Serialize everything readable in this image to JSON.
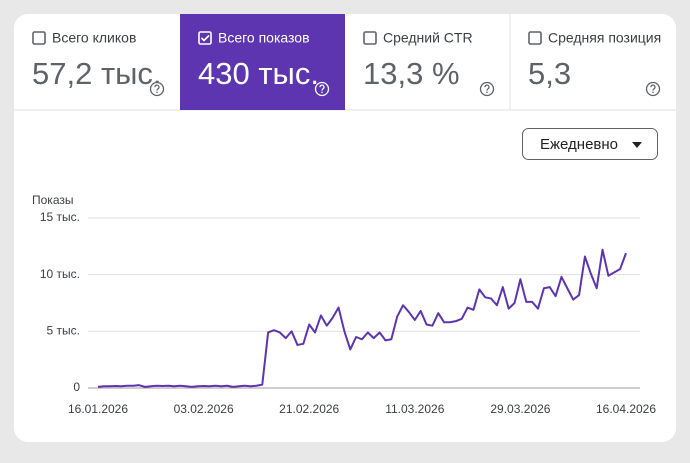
{
  "metrics": [
    {
      "label": "Всего кликов",
      "value": "57,2 тыс.",
      "checked": false
    },
    {
      "label": "Всего показов",
      "value": "430 тыс.",
      "checked": true
    },
    {
      "label": "Средний CTR",
      "value": "13,3 %",
      "checked": false
    },
    {
      "label": "Средняя позиция",
      "value": "5,3",
      "checked": false
    }
  ],
  "active_color": "#5e35b1",
  "dropdown": "Ежедневно",
  "chart_data": {
    "type": "line",
    "y_label": "Показы",
    "x": [
      "16.01.2026",
      "17.01.2026",
      "18.01.2026",
      "19.01.2026",
      "20.01.2026",
      "21.01.2026",
      "22.01.2026",
      "23.01.2026",
      "24.01.2026",
      "25.01.2026",
      "26.01.2026",
      "27.01.2026",
      "28.01.2026",
      "29.01.2026",
      "30.01.2026",
      "31.01.2026",
      "01.02.2026",
      "02.02.2026",
      "03.02.2026",
      "04.02.2026",
      "05.02.2026",
      "06.02.2026",
      "07.02.2026",
      "08.02.2026",
      "09.02.2026",
      "10.02.2026",
      "11.02.2026",
      "12.02.2026",
      "13.02.2026",
      "14.02.2026",
      "15.02.2026",
      "16.02.2026",
      "17.02.2026",
      "18.02.2026",
      "19.02.2026",
      "20.02.2026",
      "21.02.2026",
      "22.02.2026",
      "23.02.2026",
      "24.02.2026",
      "25.02.2026",
      "26.02.2026",
      "27.02.2026",
      "28.02.2026",
      "01.03.2026",
      "02.03.2026",
      "03.03.2026",
      "04.03.2026",
      "05.03.2026",
      "06.03.2026",
      "07.03.2026",
      "08.03.2026",
      "09.03.2026",
      "10.03.2026",
      "11.03.2026",
      "12.03.2026",
      "13.03.2026",
      "14.03.2026",
      "15.03.2026",
      "16.03.2026",
      "17.03.2026",
      "18.03.2026",
      "19.03.2026",
      "20.03.2026",
      "21.03.2026",
      "22.03.2026",
      "23.03.2026",
      "24.03.2026",
      "25.03.2026",
      "26.03.2026",
      "27.03.2026",
      "28.03.2026",
      "29.03.2026",
      "30.03.2026",
      "31.03.2026",
      "01.04.2026",
      "02.04.2026",
      "03.04.2026",
      "04.04.2026",
      "05.04.2026",
      "06.04.2026",
      "07.04.2026",
      "08.04.2026",
      "09.04.2026",
      "10.04.2026",
      "11.04.2026",
      "12.04.2026",
      "13.04.2026",
      "14.04.2026",
      "15.04.2026",
      "16.04.2026"
    ],
    "series": [
      {
        "name": "Показы",
        "color": "#5e35b1",
        "values": [
          100,
          150,
          150,
          180,
          150,
          200,
          200,
          250,
          100,
          150,
          200,
          180,
          200,
          150,
          200,
          150,
          100,
          150,
          180,
          150,
          200,
          150,
          200,
          100,
          150,
          200,
          150,
          200,
          300,
          4900,
          5100,
          4900,
          4400,
          5000,
          3800,
          3900,
          5600,
          4900,
          6400,
          5500,
          6200,
          7100,
          5000,
          3400,
          4500,
          4300,
          4900,
          4400,
          4900,
          4200,
          4300,
          6300,
          7300,
          6700,
          6000,
          6800,
          5600,
          5500,
          6600,
          5800,
          5800,
          5900,
          6100,
          7100,
          6900,
          8700,
          8000,
          7900,
          7300,
          8900,
          7000,
          7500,
          9600,
          7600,
          7600,
          7000,
          8800,
          8900,
          8100,
          9800,
          8800,
          7800,
          8200,
          11600,
          10100,
          8800,
          12200,
          9900,
          10200,
          10500,
          11900
        ]
      }
    ],
    "xticks": [
      "16.01.2026",
      "03.02.2026",
      "21.02.2026",
      "11.03.2026",
      "29.03.2026",
      "16.04.2026"
    ],
    "ylim": [
      0,
      15000
    ],
    "yticks": [
      0,
      {
        "value": 5000,
        "label": "5 тыс."
      },
      {
        "value": 10000,
        "label": "10 тыс."
      },
      {
        "value": 15000,
        "label": "15 тыс."
      }
    ],
    "grid": true
  }
}
